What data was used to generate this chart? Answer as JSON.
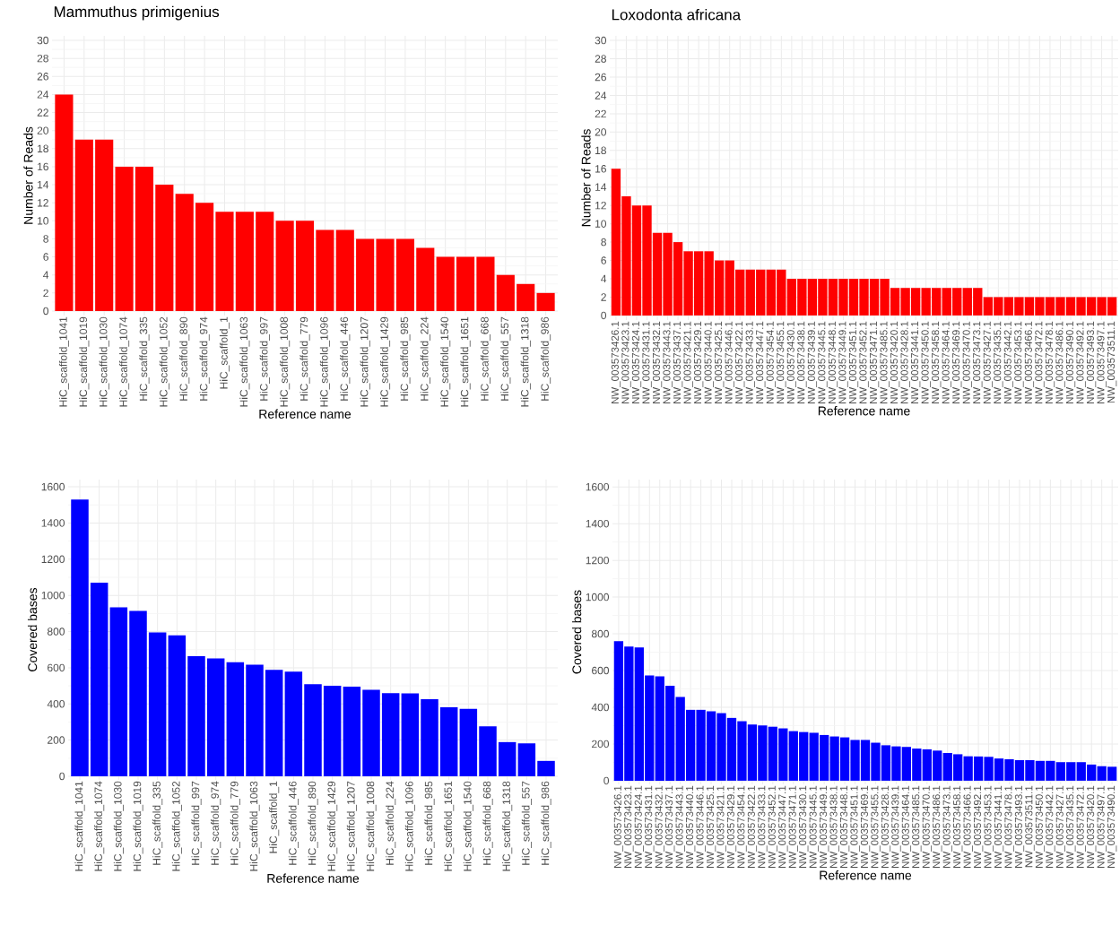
{
  "chart_data": [
    {
      "type": "bar",
      "title": "Mammuthus primigenius",
      "xlabel": "Reference name",
      "ylabel": "Number of Reads",
      "color": "#ff0000",
      "grid": true,
      "categories": [
        "HiC_scaffold_1041",
        "HiC_scaffold_1019",
        "HiC_scaffold_1030",
        "HiC_scaffold_1074",
        "HiC_scaffold_335",
        "HiC_scaffold_1052",
        "HiC_scaffold_890",
        "HiC_scaffold_974",
        "HiC_scaffold_1",
        "HiC_scaffold_1063",
        "HiC_scaffold_997",
        "HiC_scaffold_1008",
        "HiC_scaffold_779",
        "HiC_scaffold_1096",
        "HiC_scaffold_446",
        "HiC_scaffold_1207",
        "HiC_scaffold_1429",
        "HiC_scaffold_985",
        "HiC_scaffold_224",
        "HiC_scaffold_1540",
        "HiC_scaffold_1651",
        "HiC_scaffold_668",
        "HiC_scaffold_557",
        "HiC_scaffold_1318",
        "HiC_scaffold_986"
      ],
      "values": [
        24,
        19,
        19,
        16,
        16,
        14,
        13,
        12,
        11,
        11,
        11,
        10,
        10,
        9,
        9,
        8,
        8,
        8,
        7,
        6,
        6,
        6,
        4,
        3,
        2
      ],
      "ylim": [
        -0.5,
        30.5
      ],
      "yticks": [
        0,
        2,
        4,
        6,
        8,
        10,
        12,
        14,
        16,
        18,
        20,
        22,
        24,
        26,
        28,
        30
      ]
    },
    {
      "type": "bar",
      "title": "Loxodonta africana",
      "xlabel": "Reference name",
      "ylabel": "Number of Reads",
      "color": "#ff0000",
      "grid": true,
      "categories": [
        "NW_003573426.1",
        "NW_003573423.1",
        "NW_003573424.1",
        "NW_003573431.1",
        "NW_003573432.1",
        "NW_003573443.1",
        "NW_003573437.1",
        "NW_003573421.1",
        "NW_003573429.1",
        "NW_003573440.1",
        "NW_003573425.1",
        "NW_003573446.1",
        "NW_003573422.1",
        "NW_003573433.1",
        "NW_003573447.1",
        "NW_003573454.1",
        "NW_003573455.1",
        "NW_003573430.1",
        "NW_003573438.1",
        "NW_003573439.1",
        "NW_003573445.1",
        "NW_003573448.1",
        "NW_003573449.1",
        "NW_003573451.1",
        "NW_003573452.1",
        "NW_003573471.1",
        "NW_003573485.1",
        "NW_003573420.1",
        "NW_003573428.1",
        "NW_003573441.1",
        "NW_003573450.1",
        "NW_003573458.1",
        "NW_003573464.1",
        "NW_003573469.1",
        "NW_003573470.1",
        "NW_003573473.1",
        "NW_003573427.1",
        "NW_003573435.1",
        "NW_003573442.1",
        "NW_003573453.1",
        "NW_003573466.1",
        "NW_003573472.1",
        "NW_003573478.1",
        "NW_003573486.1",
        "NW_003573490.1",
        "NW_003573492.1",
        "NW_003573493.1",
        "NW_003573497.1",
        "NW_003573511.1"
      ],
      "values": [
        16,
        13,
        12,
        12,
        9,
        9,
        8,
        7,
        7,
        7,
        6,
        6,
        5,
        5,
        5,
        5,
        5,
        4,
        4,
        4,
        4,
        4,
        4,
        4,
        4,
        4,
        4,
        3,
        3,
        3,
        3,
        3,
        3,
        3,
        3,
        3,
        2,
        2,
        2,
        2,
        2,
        2,
        2,
        2,
        2,
        2,
        2,
        2,
        2
      ],
      "ylim": [
        -0.5,
        30.5
      ],
      "yticks": [
        0,
        2,
        4,
        6,
        8,
        10,
        12,
        14,
        16,
        18,
        20,
        22,
        24,
        26,
        28,
        30
      ]
    },
    {
      "type": "bar",
      "xlabel": "Reference name",
      "ylabel": "Covered bases",
      "color": "#0000ff",
      "grid": true,
      "categories": [
        "HiC_scaffold_1041",
        "HiC_scaffold_1074",
        "HiC_scaffold_1030",
        "HiC_scaffold_1019",
        "HiC_scaffold_335",
        "HiC_scaffold_1052",
        "HiC_scaffold_997",
        "HiC_scaffold_974",
        "HiC_scaffold_779",
        "HiC_scaffold_1063",
        "HiC_scaffold_1",
        "HiC_scaffold_446",
        "HiC_scaffold_890",
        "HiC_scaffold_1429",
        "HiC_scaffold_1207",
        "HiC_scaffold_1008",
        "HiC_scaffold_224",
        "HiC_scaffold_1096",
        "HiC_scaffold_985",
        "HiC_scaffold_1651",
        "HiC_scaffold_1540",
        "HiC_scaffold_668",
        "HiC_scaffold_1318",
        "HiC_scaffold_557",
        "HiC_scaffold_986"
      ],
      "values": [
        1530,
        1070,
        934,
        914,
        795,
        779,
        664,
        651,
        631,
        617,
        588,
        579,
        509,
        500,
        496,
        478,
        460,
        458,
        426,
        382,
        373,
        276,
        189,
        182,
        85
      ],
      "ylim": [
        -20,
        1640
      ],
      "yticks": [
        0,
        200,
        400,
        600,
        800,
        1000,
        1200,
        1400,
        1600
      ]
    },
    {
      "type": "bar",
      "xlabel": "Reference name",
      "ylabel": "Covered bases",
      "color": "#0000ff",
      "grid": true,
      "categories": [
        "NW_003573426.1",
        "NW_003573423.1",
        "NW_003573424.1",
        "NW_003573431.1",
        "NW_003573432.1",
        "NW_003573437.1",
        "NW_003573443.1",
        "NW_003573440.1",
        "NW_003573446.1",
        "NW_003573425.1",
        "NW_003573421.1",
        "NW_003573429.1",
        "NW_003573454.1",
        "NW_003573422.1",
        "NW_003573433.1",
        "NW_003573452.1",
        "NW_003573447.1",
        "NW_003573471.1",
        "NW_003573430.1",
        "NW_003573445.1",
        "NW_003573449.1",
        "NW_003573438.1",
        "NW_003573448.1",
        "NW_003573451.1",
        "NW_003573469.1",
        "NW_003573455.1",
        "NW_003573428.1",
        "NW_003573439.1",
        "NW_003573464.1",
        "NW_003573485.1",
        "NW_003573470.1",
        "NW_003573486.1",
        "NW_003573473.1",
        "NW_003573458.1",
        "NW_003573466.1",
        "NW_003573492.1",
        "NW_003573453.1",
        "NW_003573441.1",
        "NW_003573478.1",
        "NW_003573493.1",
        "NW_003573511.1",
        "NW_003573450.1",
        "NW_003573442.1",
        "NW_003573427.1",
        "NW_003573435.1",
        "NW_003573472.1",
        "NW_003573420.1",
        "NW_003573497.1",
        "NW_003573490.1"
      ],
      "values": [
        760,
        731,
        726,
        573,
        568,
        517,
        456,
        386,
        386,
        378,
        368,
        342,
        324,
        306,
        301,
        294,
        285,
        270,
        265,
        261,
        249,
        241,
        236,
        222,
        222,
        207,
        193,
        187,
        184,
        175,
        171,
        164,
        151,
        144,
        133,
        132,
        130,
        121,
        117,
        112,
        112,
        108,
        108,
        101,
        101,
        101,
        88,
        79,
        76
      ],
      "ylim": [
        -20,
        1640
      ],
      "yticks": [
        0,
        200,
        400,
        600,
        800,
        1000,
        1200,
        1400,
        1600
      ]
    }
  ]
}
